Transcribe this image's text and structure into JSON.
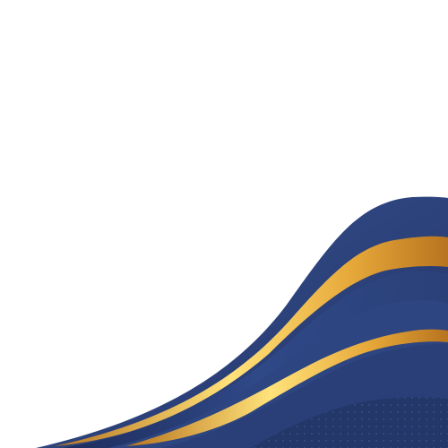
{
  "palette": {
    "background": "#ffffff",
    "navy_light": "#34508f",
    "navy_mid": "#2b4078",
    "navy_dark": "#1c2a55",
    "gold_light": "#ffe27a",
    "gold_mid": "#e7a93a",
    "gold_dark": "#b8741f"
  }
}
